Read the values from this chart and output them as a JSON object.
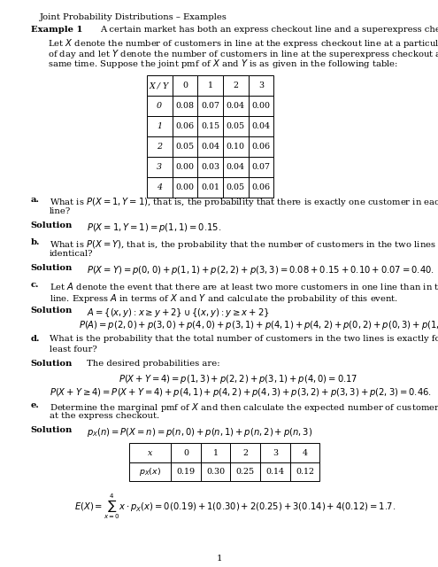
{
  "title": "Joint Probability Distributions – Examples",
  "background_color": "#ffffff",
  "text_color": "#000000",
  "fig_width": 4.95,
  "fig_height": 6.4,
  "dpi": 100,
  "joint_table_header": [
    "X / Y",
    "0",
    "1",
    "2",
    "3"
  ],
  "joint_table_rows": [
    [
      "0",
      "0.08",
      "0.07",
      "0.04",
      "0.00"
    ],
    [
      "1",
      "0.06",
      "0.15",
      "0.05",
      "0.04"
    ],
    [
      "2",
      "0.05",
      "0.04",
      "0.10",
      "0.06"
    ],
    [
      "3",
      "0.00",
      "0.03",
      "0.04",
      "0.07"
    ],
    [
      "4",
      "0.00",
      "0.01",
      "0.05",
      "0.06"
    ]
  ],
  "marginal_header": [
    "x",
    "0",
    "1",
    "2",
    "3",
    "4"
  ],
  "marginal_row": [
    "px",
    "0.19",
    "0.30",
    "0.25",
    "0.14",
    "0.12"
  ]
}
